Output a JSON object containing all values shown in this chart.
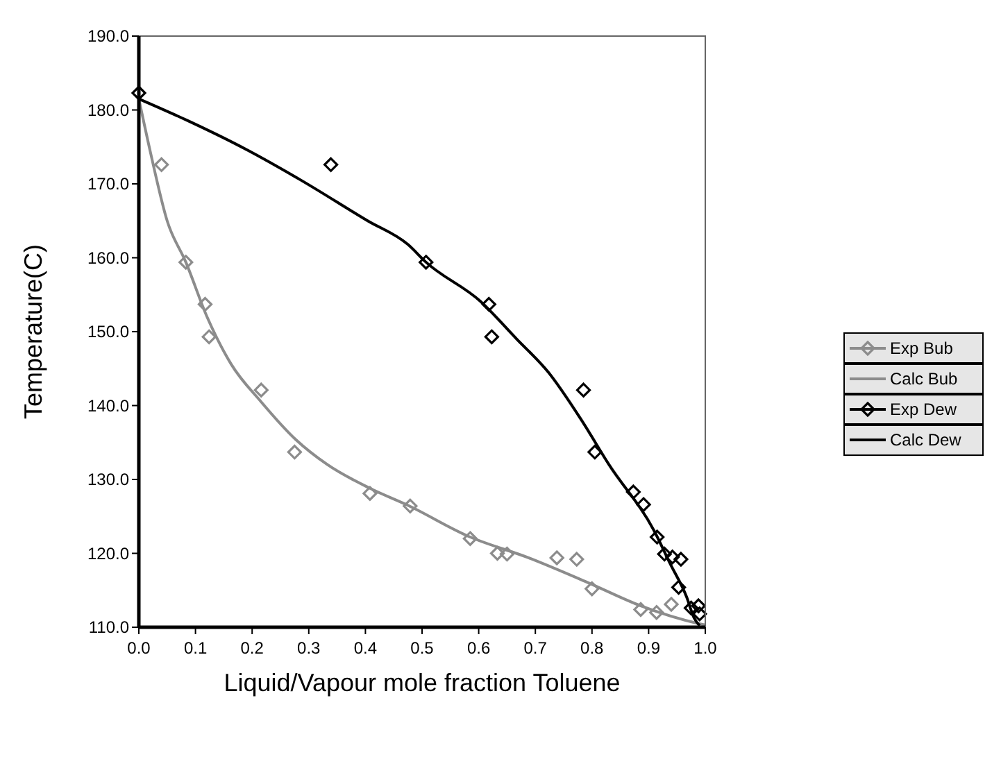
{
  "chart_data": {
    "type": "scatter",
    "xlabel": "Liquid/Vapour mole fraction Toluene",
    "ylabel": "Temperature(C)",
    "xlim": [
      0,
      1
    ],
    "ylim": [
      110,
      190
    ],
    "xticks": [
      {
        "value": 0,
        "label": "0.0"
      },
      {
        "value": 0.1,
        "label": "0.1"
      },
      {
        "value": 0.2,
        "label": "0.2"
      },
      {
        "value": 0.3,
        "label": "0.3"
      },
      {
        "value": 0.4,
        "label": "0.4"
      },
      {
        "value": 0.5,
        "label": "0.5"
      },
      {
        "value": 0.6,
        "label": "0.6"
      },
      {
        "value": 0.7,
        "label": "0.7"
      },
      {
        "value": 0.8,
        "label": "0.8"
      },
      {
        "value": 0.9,
        "label": "0.9"
      },
      {
        "value": 1,
        "label": "1.0"
      }
    ],
    "yticks": [
      {
        "value": 110,
        "label": "110.0"
      },
      {
        "value": 120,
        "label": "120.0"
      },
      {
        "value": 130,
        "label": "130.0"
      },
      {
        "value": 140,
        "label": "140.0"
      },
      {
        "value": 150,
        "label": "150.0"
      },
      {
        "value": 160,
        "label": "160.0"
      },
      {
        "value": 170,
        "label": "170.0"
      },
      {
        "value": 180,
        "label": "180.0"
      },
      {
        "value": 190,
        "label": "190.0"
      }
    ],
    "grid": false,
    "legend": "right",
    "series": [
      {
        "name": "Exp Bub",
        "marker": "diamond",
        "color": "#8c8c8c",
        "x": [
          0.04,
          0.083,
          0.117,
          0.124,
          0.216,
          0.275,
          0.408,
          0.479,
          0.585,
          0.633,
          0.65,
          0.738,
          0.773,
          0.8,
          0.886,
          0.914,
          0.94
        ],
        "values": [
          172.6,
          159.4,
          153.7,
          149.3,
          142.1,
          133.7,
          128.1,
          126.4,
          122,
          120,
          119.9,
          119.4,
          119.2,
          115.2,
          112.4,
          112,
          113.1
        ]
      },
      {
        "name": "Calc Bub",
        "type": "line",
        "marker": "none",
        "color": "#8c8c8c",
        "x": [
          0,
          0.021,
          0.05,
          0.083,
          0.121,
          0.163,
          0.216,
          0.277,
          0.333,
          0.408,
          0.475,
          0.582,
          0.688,
          0.794,
          0.886,
          0.988,
          1
        ],
        "values": [
          181.5,
          174.1,
          165,
          159.4,
          151.9,
          145.6,
          140.5,
          135.4,
          132,
          128.8,
          126.5,
          122.3,
          119.4,
          116,
          112.9,
          110.5,
          110.3
        ]
      },
      {
        "name": "Exp Dew",
        "marker": "diamond",
        "color": "#000000",
        "x": [
          0,
          0.339,
          0.507,
          0.618,
          0.623,
          0.785,
          0.805,
          0.873,
          0.891,
          0.915,
          0.928,
          0.942,
          0.957,
          0.953,
          0.975,
          0.988,
          0.99
        ],
        "values": [
          182.3,
          172.6,
          159.4,
          153.7,
          149.3,
          142.1,
          133.7,
          128.3,
          126.6,
          122.2,
          119.9,
          119.5,
          119.2,
          115.4,
          112.6,
          112.9,
          111.8
        ]
      },
      {
        "name": "Calc Dew",
        "type": "line",
        "marker": "none",
        "color": "#000000",
        "x": [
          0,
          0.085,
          0.191,
          0.284,
          0.404,
          0.475,
          0.507,
          0.603,
          0.667,
          0.723,
          0.78,
          0.83,
          0.91,
          0.938,
          0.967,
          0.98,
          0.99
        ],
        "values": [
          181.5,
          178.6,
          174.6,
          170.6,
          165,
          161.8,
          159.4,
          154.1,
          149,
          144.5,
          138.2,
          132,
          123,
          118.6,
          114.1,
          111.3,
          110.2
        ]
      }
    ]
  }
}
